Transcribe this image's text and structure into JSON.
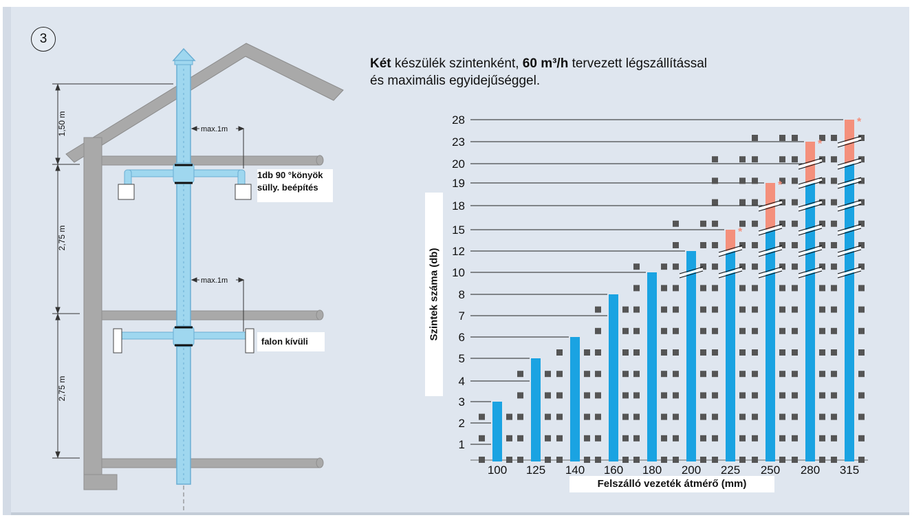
{
  "badge": "3",
  "intro": {
    "line1": [
      {
        "text": "Két",
        "bold": true
      },
      {
        "text": " készülék szintenként, ",
        "bold": false
      },
      {
        "text": "60 m³/h",
        "bold": true
      },
      {
        "text": " tervezett légszállítással",
        "bold": false
      }
    ],
    "line2": "és maximális egyidejűséggel."
  },
  "building": {
    "dim_roof": "1,50 m",
    "dim_floor_upper": "2,75 m",
    "dim_floor_lower": "2,75 m",
    "max_upper": "max.1m",
    "max_lower": "max.1m",
    "label_upper_line1": "1db 90 °könyök",
    "label_upper_line2": "süllyesztett beépítés",
    "label_upper_line2_shown": "sülly. beépítés",
    "label_lower": "falon kívüli"
  },
  "colors": {
    "bar": "#1aa3e2",
    "extension": "#f4907c",
    "star": "#f4907c",
    "device": "#555555",
    "wall": "#a9a9a9",
    "pipe": "#9fd7ef"
  },
  "chart_data": {
    "type": "bar",
    "ylabel": "Szintek száma (db)",
    "xlabel": "Felszálló vezeték átmérő (mm)",
    "categories": [
      "100",
      "125",
      "140",
      "160",
      "180",
      "200",
      "225",
      "250",
      "280",
      "315"
    ],
    "y_ticks": [
      "1",
      "2",
      "3",
      "4",
      "5",
      "6",
      "7",
      "8",
      "10",
      "12",
      "15",
      "18",
      "19",
      "20",
      "23",
      "28"
    ],
    "series": [
      {
        "values": [
          3,
          5,
          6,
          8,
          10,
          12,
          12,
          15,
          19,
          20
        ]
      },
      {
        "values": [
          null,
          null,
          null,
          null,
          null,
          null,
          15,
          19,
          23,
          28
        ]
      }
    ],
    "star": "*"
  }
}
